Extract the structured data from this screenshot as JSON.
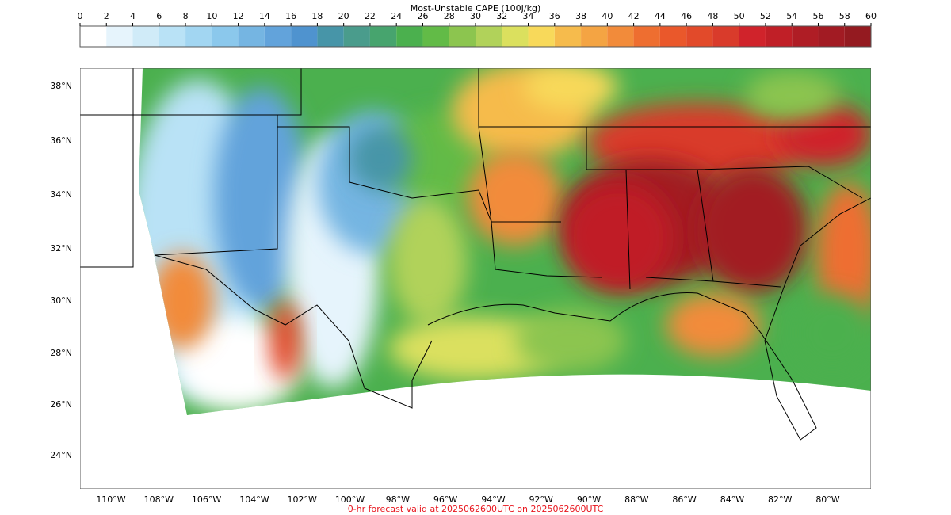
{
  "colorbar": {
    "title": "Most-Unstable CAPE (100J/kg)",
    "ticks": [
      0,
      2,
      4,
      6,
      8,
      10,
      12,
      14,
      16,
      18,
      20,
      22,
      24,
      26,
      28,
      30,
      32,
      34,
      36,
      38,
      40,
      42,
      44,
      46,
      48,
      50,
      52,
      54,
      56,
      58,
      60
    ],
    "colors": [
      "#ffffff",
      "#e6f4fc",
      "#d0ebf8",
      "#b9e2f6",
      "#a2d6f2",
      "#8bc8ec",
      "#75b5e2",
      "#62a3db",
      "#4f93cf",
      "#4795a8",
      "#4a9c8c",
      "#47a46e",
      "#4bb04e",
      "#62bb47",
      "#8cc54f",
      "#b1d25a",
      "#dbe05e",
      "#f8d95a",
      "#f6bb4c",
      "#f4a443",
      "#f28b3a",
      "#ee6e30",
      "#ea582b",
      "#e24a2a",
      "#d93b2b",
      "#d0232b",
      "#c01f27",
      "#af1d25",
      "#a21b23",
      "#941a20"
    ]
  },
  "map": {
    "lat_labels": [
      "38°N",
      "36°N",
      "34°N",
      "32°N",
      "30°N",
      "28°N",
      "26°N",
      "24°N"
    ],
    "lon_labels": [
      "110°W",
      "108°W",
      "106°W",
      "104°W",
      "102°W",
      "100°W",
      "98°W",
      "96°W",
      "94°W",
      "92°W",
      "90°W",
      "88°W",
      "86°W",
      "84°W",
      "82°W",
      "80°W"
    ]
  },
  "footer": "0-hr forecast valid at 2025062600UTC on 2025062600UTC"
}
